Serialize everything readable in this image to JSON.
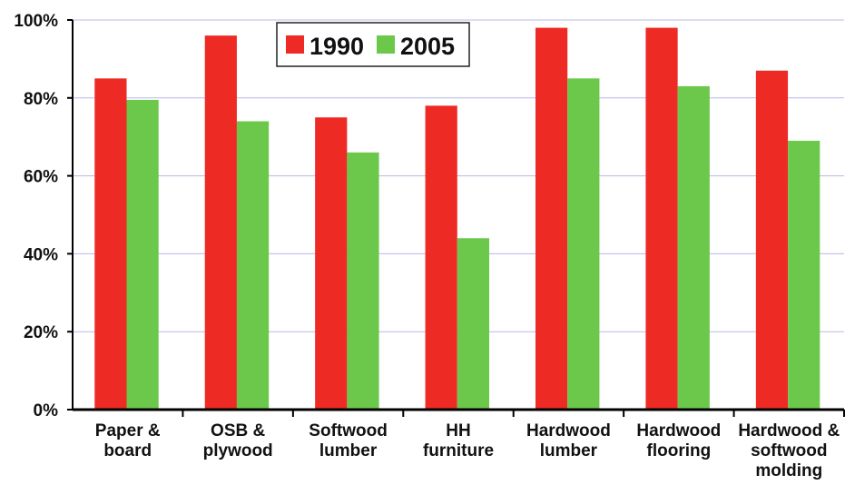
{
  "chart_data": {
    "type": "bar",
    "categories": [
      "Paper &\nboard",
      "OSB &\nplywood",
      "Softwood\nlumber",
      "HH\nfurniture",
      "Hardwood\nlumber",
      "Hardwood\nflooring",
      "Hardwood &\nsoftwood\nmolding"
    ],
    "series": [
      {
        "name": "1990",
        "color": "#ee2a24",
        "values": [
          85,
          96,
          75,
          78,
          98,
          98,
          87
        ]
      },
      {
        "name": "2005",
        "color": "#6cc84a",
        "values": [
          79.5,
          74,
          66,
          44,
          85,
          83,
          69
        ]
      }
    ],
    "ylim": [
      0,
      100
    ],
    "yticks": [
      {
        "value": 0,
        "label": "0%"
      },
      {
        "value": 20,
        "label": "20%"
      },
      {
        "value": 40,
        "label": "40%"
      },
      {
        "value": 60,
        "label": "60%"
      },
      {
        "value": 80,
        "label": "80%"
      },
      {
        "value": 100,
        "label": "100%"
      }
    ],
    "grid": true,
    "legend": "top"
  }
}
